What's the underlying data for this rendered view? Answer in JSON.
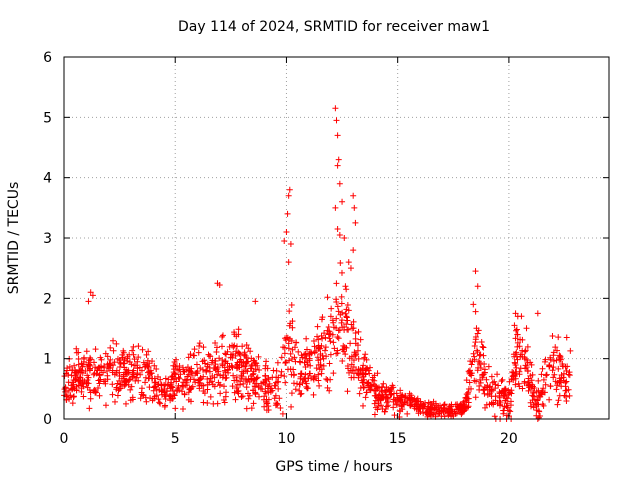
{
  "chart_data": {
    "type": "scatter",
    "title": "Day 114 of 2024, SRMTID for receiver maw1",
    "xlabel": "GPS time / hours",
    "ylabel": "SRMTID / TECUs",
    "xlim": [
      0,
      24.5
    ],
    "ylim": [
      0,
      6
    ],
    "x_ticks": [
      0,
      5,
      10,
      15,
      20
    ],
    "y_ticks": [
      0,
      1,
      2,
      3,
      4,
      5,
      6
    ],
    "x_tick_labels": [
      "0",
      "5",
      "10",
      "15",
      "20"
    ],
    "y_tick_labels": [
      "0",
      "1",
      "2",
      "3",
      "4",
      "5",
      "6"
    ],
    "grid": true,
    "marker": "+",
    "color": "#ff0000",
    "data_note": "Approximate reconstruction of the visible point cloud (baseline envelope plus notable peaks).",
    "envelope": [
      [
        0.0,
        0.55,
        0.35
      ],
      [
        0.5,
        0.65,
        0.35
      ],
      [
        1.0,
        0.8,
        0.45
      ],
      [
        1.5,
        0.7,
        0.4
      ],
      [
        2.0,
        0.75,
        0.4
      ],
      [
        2.5,
        0.8,
        0.4
      ],
      [
        3.0,
        0.8,
        0.4
      ],
      [
        3.5,
        0.7,
        0.4
      ],
      [
        4.0,
        0.6,
        0.35
      ],
      [
        4.5,
        0.4,
        0.2
      ],
      [
        5.0,
        0.65,
        0.35
      ],
      [
        5.5,
        0.7,
        0.4
      ],
      [
        6.0,
        0.75,
        0.4
      ],
      [
        6.5,
        0.75,
        0.4
      ],
      [
        7.0,
        0.8,
        0.45
      ],
      [
        7.5,
        0.85,
        0.45
      ],
      [
        8.0,
        0.8,
        0.45
      ],
      [
        8.5,
        0.75,
        0.4
      ],
      [
        9.0,
        0.55,
        0.35
      ],
      [
        9.5,
        0.4,
        0.3
      ],
      [
        10.0,
        1.2,
        0.9
      ],
      [
        10.5,
        0.7,
        0.4
      ],
      [
        11.0,
        0.8,
        0.4
      ],
      [
        11.5,
        1.0,
        0.5
      ],
      [
        12.0,
        1.3,
        0.7
      ],
      [
        12.5,
        1.6,
        0.8
      ],
      [
        13.0,
        1.3,
        0.7
      ],
      [
        13.5,
        0.7,
        0.4
      ],
      [
        14.0,
        0.45,
        0.25
      ],
      [
        14.5,
        0.35,
        0.2
      ],
      [
        15.0,
        0.3,
        0.18
      ],
      [
        15.5,
        0.3,
        0.18
      ],
      [
        16.0,
        0.2,
        0.12
      ],
      [
        16.5,
        0.15,
        0.1
      ],
      [
        17.0,
        0.15,
        0.1
      ],
      [
        17.5,
        0.15,
        0.1
      ],
      [
        18.0,
        0.2,
        0.12
      ],
      [
        18.5,
        1.2,
        0.7
      ],
      [
        19.0,
        0.6,
        0.35
      ],
      [
        19.5,
        0.4,
        0.3
      ],
      [
        20.0,
        0.3,
        0.25
      ],
      [
        20.3,
        1.1,
        0.5
      ],
      [
        20.8,
        0.9,
        0.5
      ],
      [
        21.2,
        0.2,
        0.2
      ],
      [
        21.5,
        0.5,
        0.35
      ],
      [
        22.0,
        0.8,
        0.45
      ],
      [
        22.5,
        0.7,
        0.4
      ],
      [
        22.8,
        0.7,
        0.4
      ]
    ],
    "peaks": [
      [
        1.2,
        2.1
      ],
      [
        1.3,
        2.05
      ],
      [
        1.1,
        1.95
      ],
      [
        6.9,
        2.25
      ],
      [
        7.0,
        2.22
      ],
      [
        8.6,
        1.95
      ],
      [
        9.9,
        2.95
      ],
      [
        10.0,
        3.1
      ],
      [
        10.05,
        3.4
      ],
      [
        10.1,
        3.7
      ],
      [
        10.15,
        3.8
      ],
      [
        10.1,
        2.6
      ],
      [
        10.2,
        2.9
      ],
      [
        12.2,
        5.15
      ],
      [
        12.25,
        4.95
      ],
      [
        12.3,
        4.7
      ],
      [
        12.35,
        4.3
      ],
      [
        12.3,
        4.2
      ],
      [
        12.4,
        3.9
      ],
      [
        12.5,
        3.6
      ],
      [
        12.2,
        3.5
      ],
      [
        12.3,
        3.15
      ],
      [
        12.4,
        3.05
      ],
      [
        12.6,
        3.0
      ],
      [
        12.8,
        2.6
      ],
      [
        13.0,
        3.7
      ],
      [
        13.05,
        3.5
      ],
      [
        13.1,
        3.25
      ],
      [
        13.0,
        2.8
      ],
      [
        12.9,
        2.5
      ],
      [
        18.5,
        2.45
      ],
      [
        18.6,
        2.2
      ],
      [
        18.4,
        1.9
      ],
      [
        20.3,
        1.75
      ],
      [
        20.4,
        1.7
      ],
      [
        21.3,
        1.75
      ],
      [
        22.6,
        1.35
      ],
      [
        9.2,
        0.15
      ],
      [
        20.0,
        0.05
      ],
      [
        21.3,
        0.0
      ],
      [
        21.35,
        0.02
      ],
      [
        21.4,
        0.05
      ],
      [
        20.1,
        0.0
      ],
      [
        16.5,
        0.05
      ],
      [
        17.5,
        0.05
      ]
    ]
  }
}
